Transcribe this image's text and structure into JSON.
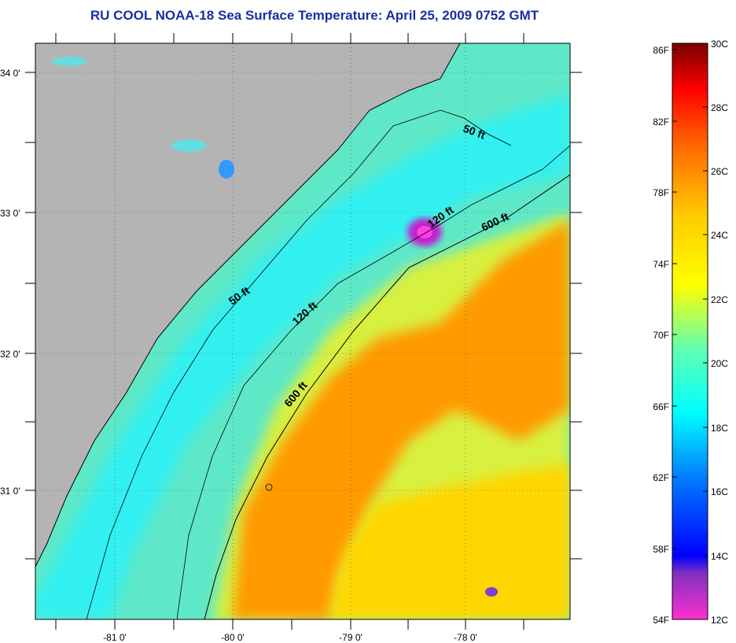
{
  "title": "RU COOL  NOAA-18  Sea Surface Temperature:  April 25, 2009 0752 GMT",
  "map": {
    "lat_labels": [
      "34 0'",
      "33 0'",
      "32 0'",
      "31 0'"
    ],
    "lon_labels": [
      "-81 0'",
      "-80 0'",
      "-79 0'",
      "-78 0'"
    ],
    "contour_labels": [
      "50 ft",
      "120 ft",
      "600 ft",
      "50 ft",
      "120 ft",
      "600 ft"
    ]
  },
  "colorbar": {
    "f_labels": [
      "86F",
      "82F",
      "78F",
      "74F",
      "70F",
      "66F",
      "62F",
      "58F",
      "54F"
    ],
    "c_labels": [
      "30C",
      "28C",
      "26C",
      "24C",
      "22C",
      "20C",
      "18C",
      "16C",
      "14C",
      "12C"
    ],
    "colors": [
      "#7a0000",
      "#ff0000",
      "#ff6a00",
      "#ffcc00",
      "#ffff00",
      "#7dffa0",
      "#00ffff",
      "#0080ff",
      "#0000ff",
      "#8000c0",
      "#ff30d0"
    ]
  }
}
